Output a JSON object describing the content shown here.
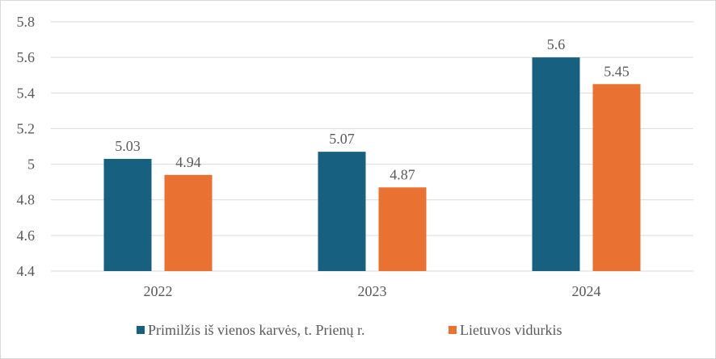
{
  "chart_data": {
    "type": "bar",
    "title": "",
    "xlabel": "",
    "ylabel": "",
    "categories": [
      "2022",
      "2023",
      "2024"
    ],
    "series": [
      {
        "name": "Primilžis iš vienos karvės, t. Prienų r.",
        "values": [
          5.03,
          5.07,
          5.6
        ],
        "color": "#17607F"
      },
      {
        "name": "Lietuvos vidurkis",
        "values": [
          4.94,
          4.87,
          5.45
        ],
        "color": "#E97132"
      }
    ],
    "ylim": [
      4.4,
      5.8
    ],
    "yticks": [
      "4.4",
      "4.6",
      "4.8",
      "5",
      "5.2",
      "5.4",
      "5.6",
      "5.8"
    ],
    "data_labels": [
      [
        "5.03",
        "5.07",
        "5.6"
      ],
      [
        "4.94",
        "4.87",
        "5.45"
      ]
    ],
    "grid": true,
    "legend_position": "bottom"
  }
}
